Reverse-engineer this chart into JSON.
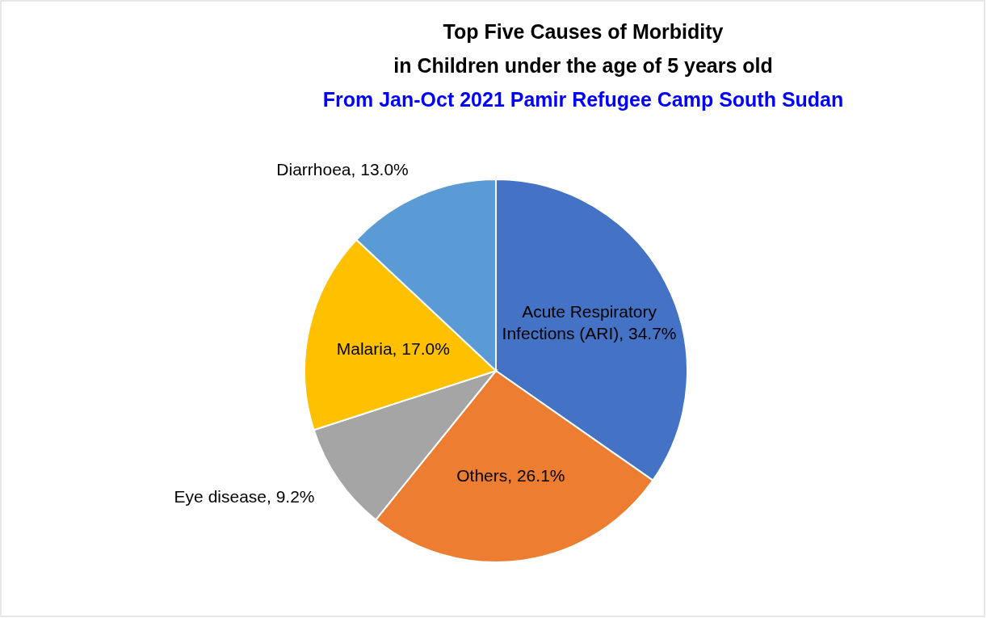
{
  "chart_data": {
    "type": "pie",
    "title": "Top Five Causes of Morbidity\nin Children under the age of 5 years old",
    "subtitle": "From Jan-Oct 2021 Pamir Refugee Camp South Sudan",
    "categories": [
      "Acute Respiratory Infections (ARI)",
      "Others",
      "Eye disease",
      "Malaria",
      "Diarrhoea"
    ],
    "values": [
      34.7,
      26.1,
      9.2,
      17.0,
      13.0
    ],
    "value_labels": [
      "34.7%",
      "26.1%",
      "9.2%",
      "17.0%",
      "13.0%"
    ],
    "colors": [
      "#4472c4",
      "#ed7d31",
      "#a5a5a5",
      "#ffc000",
      "#5b9bd5"
    ],
    "legend": false
  }
}
